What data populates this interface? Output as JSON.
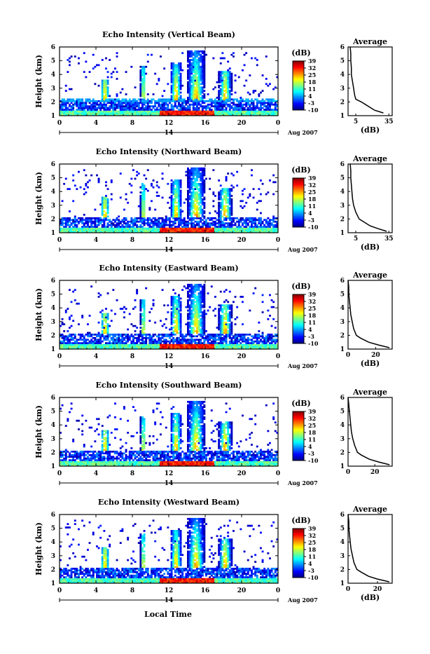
{
  "figure": {
    "footer_xlabel": "Local Time"
  },
  "chart_data": [
    {
      "type": "heatmap",
      "title": "Echo Intensity (Vertical Beam)",
      "ylabel": "Height (km)",
      "xticks": [
        "0",
        "4",
        "8",
        "12",
        "16",
        "20",
        "0"
      ],
      "xlim": [
        0,
        24
      ],
      "ylim": [
        1,
        6
      ],
      "yticks": [
        "1",
        "2",
        "3",
        "4",
        "5",
        "6"
      ],
      "date_marker": "14",
      "date_label": "Aug 2007",
      "colorbar": {
        "unit": "(dB)",
        "ticks": [
          "39",
          "32",
          "25",
          "18",
          "11",
          "4",
          "-3",
          "-10"
        ],
        "range": [
          -10,
          39
        ]
      },
      "profile": {
        "title": "Average",
        "xlabel": "(dB)",
        "xticks": [
          "5",
          "35"
        ],
        "xlim": [
          -2,
          38
        ],
        "heights": [
          1.2,
          1.4,
          1.6,
          1.8,
          2.0,
          2.2,
          2.5,
          3.0,
          3.5,
          4.0,
          4.5,
          5.0,
          5.5,
          6.0
        ],
        "values": [
          30,
          22,
          18,
          14,
          10,
          5,
          4,
          3,
          2,
          1,
          1,
          0.5,
          0.5,
          0
        ]
      }
    },
    {
      "type": "heatmap",
      "title": "Echo Intensity (Northward Beam)",
      "ylabel": "Height (km)",
      "xticks": [
        "0",
        "4",
        "8",
        "12",
        "16",
        "20",
        "0"
      ],
      "xlim": [
        0,
        24
      ],
      "ylim": [
        1,
        6
      ],
      "yticks": [
        "1",
        "2",
        "3",
        "4",
        "5",
        "6"
      ],
      "date_marker": "14",
      "date_label": "Aug 2007",
      "colorbar": {
        "unit": "(dB)",
        "ticks": [
          "39",
          "32",
          "25",
          "18",
          "11",
          "4",
          "-3",
          "-10"
        ],
        "range": [
          -10,
          39
        ]
      },
      "profile": {
        "title": "Average",
        "xlabel": "(dB)",
        "xticks": [
          "5",
          "35"
        ],
        "xlim": [
          -2,
          38
        ],
        "heights": [
          1.1,
          1.3,
          1.5,
          1.8,
          2.0,
          2.5,
          3.0,
          3.5,
          4.0,
          4.5,
          5.0,
          5.5,
          6.0
        ],
        "values": [
          33,
          25,
          18,
          12,
          8,
          5,
          3,
          2,
          1.5,
          1,
          0.5,
          0.5,
          0
        ]
      }
    },
    {
      "type": "heatmap",
      "title": "Echo Intensity (Eastward Beam)",
      "ylabel": "Height (km)",
      "xticks": [
        "0",
        "4",
        "8",
        "12",
        "16",
        "20",
        "0"
      ],
      "xlim": [
        0,
        24
      ],
      "ylim": [
        1,
        6
      ],
      "yticks": [
        "1",
        "2",
        "3",
        "4",
        "5",
        "6"
      ],
      "date_marker": "14",
      "date_label": "Aug 2007",
      "colorbar": {
        "unit": "(dB)",
        "ticks": [
          "39",
          "32",
          "25",
          "18",
          "11",
          "4",
          "-3",
          "-10"
        ],
        "range": [
          -10,
          39
        ]
      },
      "profile": {
        "title": "Average",
        "xlabel": "(dB)",
        "xticks": [
          "0",
          "20"
        ],
        "xlim": [
          0,
          32
        ],
        "heights": [
          1.1,
          1.3,
          1.5,
          1.8,
          2.0,
          2.5,
          3.0,
          3.5,
          4.0,
          4.5,
          5.0,
          5.5,
          6.0
        ],
        "values": [
          30,
          22,
          15,
          9,
          6,
          4,
          3,
          2,
          1.5,
          1,
          0.5,
          0.5,
          0
        ]
      }
    },
    {
      "type": "heatmap",
      "title": "Echo Intensity (Southward Beam)",
      "ylabel": "Height (km)",
      "xticks": [
        "0",
        "4",
        "8",
        "12",
        "16",
        "20",
        "0"
      ],
      "xlim": [
        0,
        24
      ],
      "ylim": [
        1,
        6
      ],
      "yticks": [
        "1",
        "2",
        "3",
        "4",
        "5",
        "6"
      ],
      "date_marker": "14",
      "date_label": "Aug 2007",
      "colorbar": {
        "unit": "(dB)",
        "ticks": [
          "39",
          "32",
          "25",
          "18",
          "11",
          "4",
          "-3",
          "-10"
        ],
        "range": [
          -10,
          39
        ]
      },
      "profile": {
        "title": "Average",
        "xlabel": "",
        "xticks": [
          "0",
          "20"
        ],
        "xlim": [
          0,
          33
        ],
        "heights": [
          1.1,
          1.3,
          1.5,
          1.8,
          2.0,
          2.5,
          3.0,
          3.5,
          4.0,
          4.5,
          5.0,
          5.5,
          6.0
        ],
        "values": [
          31,
          23,
          16,
          10,
          7,
          5,
          3.5,
          2.5,
          2,
          1.5,
          1,
          0.5,
          0
        ]
      }
    },
    {
      "type": "heatmap",
      "title": "Echo Intensity (Westward Beam)",
      "ylabel": "Height (km)",
      "xticks": [
        "0",
        "4",
        "8",
        "12",
        "16",
        "20",
        "0"
      ],
      "xlim": [
        0,
        24
      ],
      "ylim": [
        1,
        6
      ],
      "yticks": [
        "1",
        "2",
        "3",
        "4",
        "5",
        "6"
      ],
      "date_marker": "14",
      "date_label": "Aug 2007",
      "colorbar": {
        "unit": "(dB)",
        "ticks": [
          "39",
          "32",
          "25",
          "18",
          "11",
          "4",
          "-3",
          "-10"
        ],
        "range": [
          -10,
          39
        ]
      },
      "profile": {
        "title": "Average",
        "xlabel": "(dB)",
        "xticks": [
          "0",
          "20"
        ],
        "xlim": [
          0,
          30
        ],
        "heights": [
          1.1,
          1.3,
          1.5,
          1.8,
          2.0,
          2.5,
          3.0,
          3.5,
          4.0,
          4.5,
          5.0,
          5.5,
          6.0
        ],
        "values": [
          28,
          20,
          14,
          9,
          6,
          4,
          3,
          2,
          1.5,
          1,
          0.5,
          0.5,
          0
        ]
      }
    }
  ]
}
